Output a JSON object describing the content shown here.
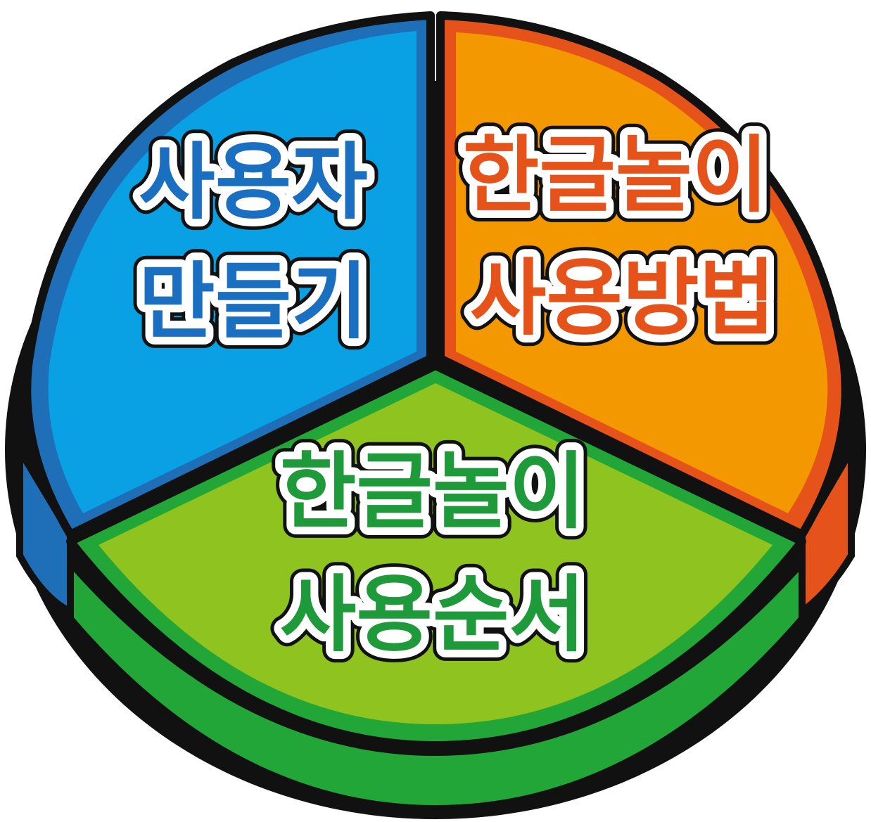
{
  "segments": [
    {
      "id": "user-create",
      "lines": [
        "사용자",
        "만들기"
      ],
      "face_color": "#0aa0e4",
      "rim_color": "#1e6fb8",
      "text_color": "#1b6fc0"
    },
    {
      "id": "usage-method",
      "lines": [
        "한글놀이",
        "사용방법"
      ],
      "face_color": "#f39800",
      "rim_color": "#e6531a",
      "text_color": "#e6531a"
    },
    {
      "id": "usage-order",
      "lines": [
        "한글놀이",
        "사용순서"
      ],
      "face_color": "#8fc31f",
      "rim_color": "#22a638",
      "text_color": "#1f9a3a"
    }
  ]
}
